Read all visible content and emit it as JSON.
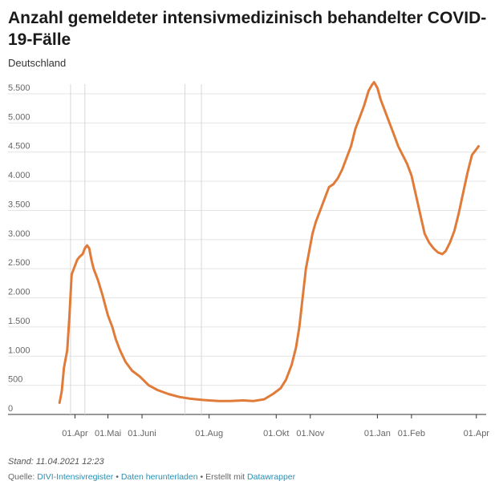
{
  "chart_data": {
    "type": "line",
    "title": "Anzahl gemeldeter intensivmedizinisch behandelter COVID-19-Fälle",
    "subtitle": "Deutschland",
    "xlabel": "",
    "ylabel": "",
    "ylim": [
      0,
      5500
    ],
    "yticks": [
      0,
      500,
      1000,
      1500,
      2000,
      2500,
      3000,
      3500,
      4000,
      4500,
      5000,
      5500
    ],
    "ytick_labels": [
      "0",
      "500",
      "1.000",
      "1.500",
      "2.000",
      "2.500",
      "3.000",
      "3.500",
      "4.000",
      "4.500",
      "5.000",
      "5.500"
    ],
    "xticks": [
      "2020-04-01",
      "2020-05-01",
      "2020-06-01",
      "2020-08-01",
      "2020-10-01",
      "2020-11-01",
      "2021-01-01",
      "2021-02-01",
      "2021-04-01"
    ],
    "xtick_labels": [
      "01.Apr",
      "01.Mai",
      "01.Juni",
      "01.Aug",
      "01.Okt",
      "01.Nov",
      "01.Jan",
      "01.Feb",
      "01.Apr"
    ],
    "grid": true,
    "line_color": "#e07b39",
    "series": [
      {
        "values": [
          [
            "2020-03-18",
            200
          ],
          [
            "2020-03-20",
            400
          ],
          [
            "2020-03-22",
            800
          ],
          [
            "2020-03-25",
            1100
          ],
          [
            "2020-03-27",
            1700
          ],
          [
            "2020-03-29",
            2400
          ],
          [
            "2020-04-01",
            2550
          ],
          [
            "2020-04-03",
            2650
          ],
          [
            "2020-04-05",
            2700
          ],
          [
            "2020-04-08",
            2750
          ],
          [
            "2020-04-10",
            2850
          ],
          [
            "2020-04-12",
            2900
          ],
          [
            "2020-04-14",
            2850
          ],
          [
            "2020-04-16",
            2650
          ],
          [
            "2020-04-18",
            2500
          ],
          [
            "2020-04-22",
            2300
          ],
          [
            "2020-04-26",
            2050
          ],
          [
            "2020-05-01",
            1700
          ],
          [
            "2020-05-05",
            1500
          ],
          [
            "2020-05-08",
            1300
          ],
          [
            "2020-05-12",
            1100
          ],
          [
            "2020-05-17",
            900
          ],
          [
            "2020-05-23",
            750
          ],
          [
            "2020-05-30",
            650
          ],
          [
            "2020-06-07",
            500
          ],
          [
            "2020-06-15",
            420
          ],
          [
            "2020-06-25",
            350
          ],
          [
            "2020-07-05",
            300
          ],
          [
            "2020-07-15",
            270
          ],
          [
            "2020-07-25",
            250
          ],
          [
            "2020-08-01",
            240
          ],
          [
            "2020-08-10",
            230
          ],
          [
            "2020-08-20",
            230
          ],
          [
            "2020-09-01",
            240
          ],
          [
            "2020-09-10",
            230
          ],
          [
            "2020-09-20",
            260
          ],
          [
            "2020-09-28",
            350
          ],
          [
            "2020-10-05",
            450
          ],
          [
            "2020-10-10",
            600
          ],
          [
            "2020-10-15",
            850
          ],
          [
            "2020-10-19",
            1150
          ],
          [
            "2020-10-22",
            1500
          ],
          [
            "2020-10-25",
            2000
          ],
          [
            "2020-10-28",
            2500
          ],
          [
            "2020-10-31",
            2800
          ],
          [
            "2020-11-03",
            3100
          ],
          [
            "2020-11-06",
            3300
          ],
          [
            "2020-11-10",
            3500
          ],
          [
            "2020-11-14",
            3700
          ],
          [
            "2020-11-18",
            3900
          ],
          [
            "2020-11-22",
            3950
          ],
          [
            "2020-11-26",
            4050
          ],
          [
            "2020-11-30",
            4200
          ],
          [
            "2020-12-04",
            4400
          ],
          [
            "2020-12-08",
            4600
          ],
          [
            "2020-12-12",
            4900
          ],
          [
            "2020-12-16",
            5100
          ],
          [
            "2020-12-20",
            5300
          ],
          [
            "2020-12-24",
            5550
          ],
          [
            "2020-12-27",
            5650
          ],
          [
            "2020-12-29",
            5700
          ],
          [
            "2021-01-01",
            5600
          ],
          [
            "2021-01-04",
            5400
          ],
          [
            "2021-01-08",
            5200
          ],
          [
            "2021-01-12",
            5000
          ],
          [
            "2021-01-16",
            4800
          ],
          [
            "2021-01-20",
            4600
          ],
          [
            "2021-01-24",
            4450
          ],
          [
            "2021-01-28",
            4300
          ],
          [
            "2021-02-01",
            4100
          ],
          [
            "2021-02-04",
            3850
          ],
          [
            "2021-02-07",
            3600
          ],
          [
            "2021-02-10",
            3350
          ],
          [
            "2021-02-13",
            3100
          ],
          [
            "2021-02-17",
            2950
          ],
          [
            "2021-02-21",
            2850
          ],
          [
            "2021-02-25",
            2780
          ],
          [
            "2021-03-01",
            2750
          ],
          [
            "2021-03-04",
            2800
          ],
          [
            "2021-03-08",
            2950
          ],
          [
            "2021-03-12",
            3150
          ],
          [
            "2021-03-16",
            3450
          ],
          [
            "2021-03-20",
            3800
          ],
          [
            "2021-03-24",
            4150
          ],
          [
            "2021-03-28",
            4450
          ],
          [
            "2021-04-01",
            4550
          ],
          [
            "2021-04-03",
            4600
          ]
        ]
      }
    ]
  },
  "footer": {
    "stand": "Stand: 11.04.2021 12:23",
    "source_prefix": "Quelle: ",
    "source_link": "DIVI-Intensivregister",
    "sep1": " • ",
    "download_link": "Daten herunterladen",
    "sep2": " • Erstellt mit ",
    "tool_link": "Datawrapper"
  }
}
